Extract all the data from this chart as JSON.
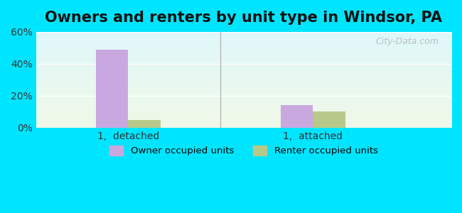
{
  "title": "Owners and renters by unit type in Windsor, PA",
  "categories": [
    "1,  detached",
    "1,  attached"
  ],
  "owner_values": [
    49,
    14
  ],
  "renter_values": [
    5,
    10
  ],
  "owner_color": "#c9a8e0",
  "renter_color": "#b8c88a",
  "ylim": [
    0,
    60
  ],
  "yticks": [
    0,
    20,
    40,
    60
  ],
  "ytick_labels": [
    "0%",
    "20%",
    "40%",
    "60%"
  ],
  "bar_width": 0.35,
  "group_positions": [
    1.0,
    3.0
  ],
  "xlim": [
    0,
    4.5
  ],
  "outer_bg": "#00e5ff",
  "legend_owner": "Owner occupied units",
  "legend_renter": "Renter occupied units",
  "watermark": "City-Data.com",
  "title_fontsize": 15,
  "tick_fontsize": 10
}
